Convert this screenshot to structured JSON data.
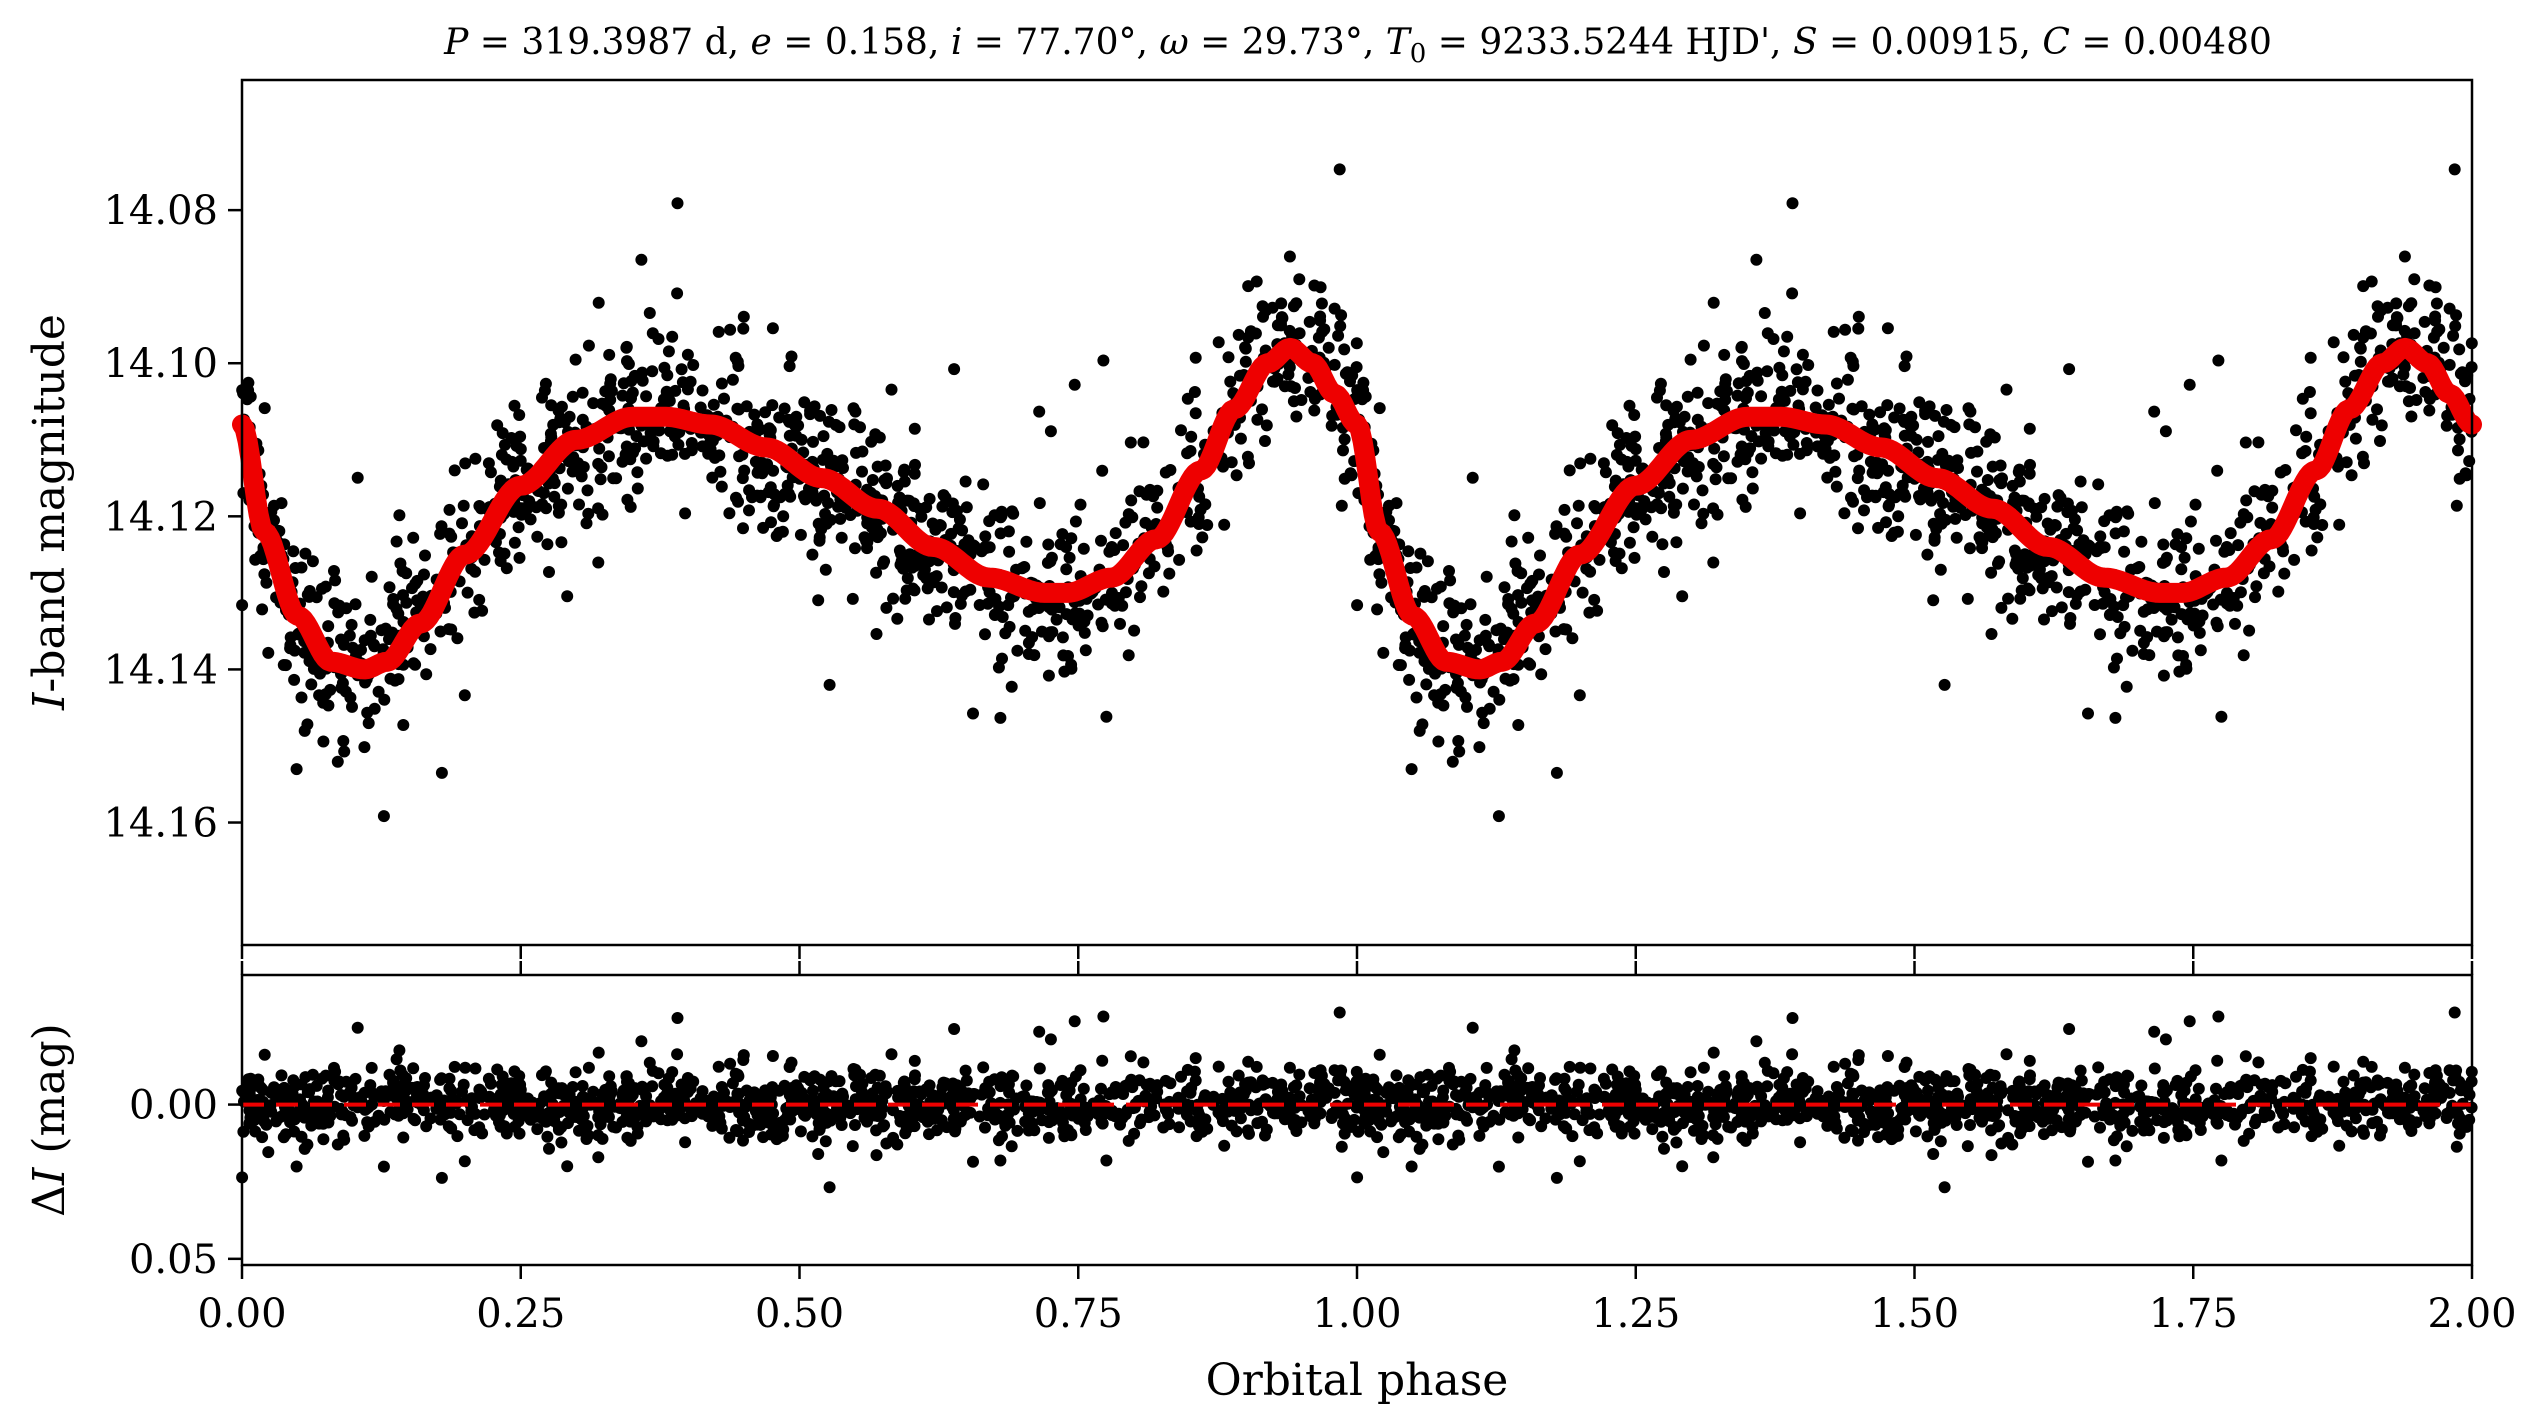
{
  "chart_data": [
    {
      "type": "scatter",
      "title": "P = 319.3987 d, e = 0.158, i = 77.70°, ω = 29.73°, T0 = 9233.5244 HJD', S = 0.00915, C = 0.00480",
      "title_parts": {
        "p_sym": "P",
        "p_val": " = 319.3987 d, ",
        "e_sym": "e",
        "e_val": " = 0.158, ",
        "i_sym": "i",
        "i_val": " = 77.70°, ",
        "w_sym": "ω",
        "w_val": " = 29.73°, ",
        "t_sym": "T",
        "t_sub": "0",
        "t_val": " = 9233.5244 HJD', ",
        "s_sym": "S",
        "s_val": " = 0.00915, ",
        "c_sym": "C",
        "c_val": " = 0.00480"
      },
      "xlabel": "",
      "ylabel_italic": "I",
      "ylabel_rest": "-band magnitude",
      "xlim": [
        0,
        2
      ],
      "ylim": [
        14.176,
        14.063
      ],
      "y_inverted": true,
      "yticks": [
        14.08,
        14.1,
        14.12,
        14.14,
        14.16
      ],
      "ytick_labels": [
        "14.08",
        "14.10",
        "14.12",
        "14.14",
        "14.16"
      ],
      "series": [
        {
          "kind": "observations",
          "marker": "dot",
          "color": "#000000",
          "model_key": {
            "phase": [
              0.0,
              0.02,
              0.05,
              0.08,
              0.11,
              0.13,
              0.16,
              0.2,
              0.25,
              0.3,
              0.35,
              0.38,
              0.42,
              0.47,
              0.52,
              0.57,
              0.62,
              0.67,
              0.72,
              0.74,
              0.78,
              0.82,
              0.86,
              0.89,
              0.92,
              0.94,
              0.96,
              0.98,
              1.0
            ],
            "mag": [
              14.108,
              14.122,
              14.133,
              14.139,
              14.14,
              14.139,
              14.134,
              14.125,
              14.116,
              14.11,
              14.107,
              14.107,
              14.108,
              14.111,
              14.115,
              14.119,
              14.124,
              14.128,
              14.13,
              14.13,
              14.128,
              14.123,
              14.114,
              14.106,
              14.1,
              14.098,
              14.1,
              14.104,
              14.108
            ]
          },
          "scatter_sigma": 0.0078,
          "n_per_cycle": 1200
        },
        {
          "kind": "model",
          "color": "#ee0000",
          "style": "thick-line"
        }
      ]
    },
    {
      "type": "scatter",
      "title": "",
      "xlabel": "Orbital phase",
      "ylabel_prefix": "Δ",
      "ylabel_italic": "I",
      "ylabel_rest": " (mag)",
      "xlim": [
        0,
        2
      ],
      "ylim": [
        0.052,
        -0.042
      ],
      "y_inverted": true,
      "xticks": [
        0.0,
        0.25,
        0.5,
        0.75,
        1.0,
        1.25,
        1.5,
        1.75,
        2.0
      ],
      "xtick_labels": [
        "0.00",
        "0.25",
        "0.50",
        "0.75",
        "1.00",
        "1.25",
        "1.50",
        "1.75",
        "2.00"
      ],
      "yticks": [
        0.0,
        0.05
      ],
      "ytick_labels": [
        "0.00",
        "0.05"
      ],
      "series": [
        {
          "kind": "residuals",
          "marker": "dot",
          "color": "#000000"
        },
        {
          "kind": "zero-line",
          "color": "#ee0000",
          "style": "dashed",
          "y": 0.0
        }
      ]
    }
  ]
}
